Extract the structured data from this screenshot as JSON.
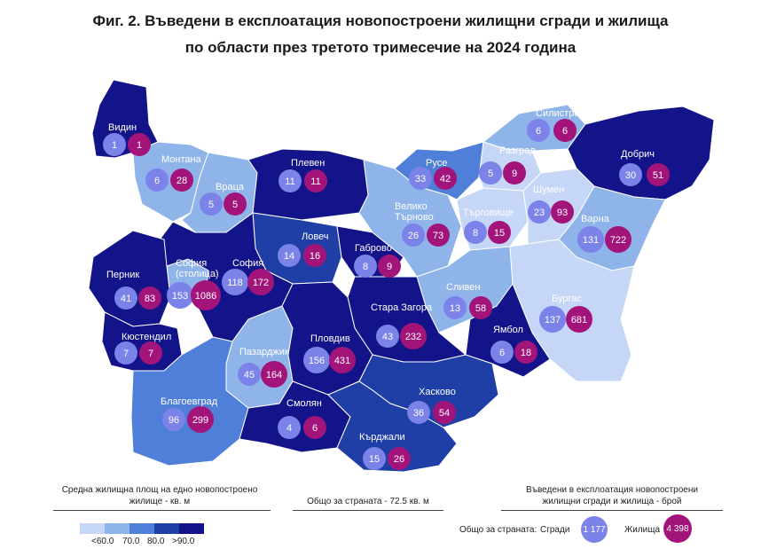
{
  "title_line1": "Фиг. 2. Въведени в експлоатация новопостроени жилищни сгради и жилища",
  "title_line2": "по области през третото тримесечие на 2024 година",
  "colors": {
    "lt60": "#c5d6f7",
    "c70": "#8fb4ea",
    "c80": "#4f7fd8",
    "c90": "#1f3fa6",
    "gt90": "#14148a",
    "buildings_circle": "#7b82e8",
    "dwellings_circle": "#a3147a"
  },
  "regions": [
    {
      "name": "Видин",
      "buildings": "1",
      "dwellings": "1"
    },
    {
      "name": "Монтана",
      "buildings": "6",
      "dwellings": "28"
    },
    {
      "name": "Враца",
      "buildings": "5",
      "dwellings": "5"
    },
    {
      "name": "Плевен",
      "buildings": "11",
      "dwellings": "11"
    },
    {
      "name": "Русе",
      "buildings": "33",
      "dwellings": "42"
    },
    {
      "name": "Силистра",
      "buildings": "6",
      "dwellings": "6"
    },
    {
      "name": "Разград",
      "buildings": "5",
      "dwellings": "9"
    },
    {
      "name": "Добрич",
      "buildings": "30",
      "dwellings": "51"
    },
    {
      "name": "Шумен",
      "buildings": "23",
      "dwellings": "93"
    },
    {
      "name": "Търговище",
      "buildings": "8",
      "dwellings": "15"
    },
    {
      "name": "Велико Търново",
      "buildings": "26",
      "dwellings": "73"
    },
    {
      "name": "Варна",
      "buildings": "131",
      "dwellings": "722"
    },
    {
      "name": "Ловеч",
      "buildings": "14",
      "dwellings": "16"
    },
    {
      "name": "Габрово",
      "buildings": "8",
      "dwellings": "9"
    },
    {
      "name": "София (столица)",
      "buildings": "153",
      "dwellings": "1086"
    },
    {
      "name": "София",
      "buildings": "118",
      "dwellings": "172"
    },
    {
      "name": "Перник",
      "buildings": "41",
      "dwellings": "83"
    },
    {
      "name": "Сливен",
      "buildings": "13",
      "dwellings": "58"
    },
    {
      "name": "Бургас",
      "buildings": "137",
      "dwellings": "681"
    },
    {
      "name": "Стара Загора",
      "buildings": "43",
      "dwellings": "232"
    },
    {
      "name": "Кюстендил",
      "buildings": "7",
      "dwellings": "7"
    },
    {
      "name": "Ямбол",
      "buildings": "6",
      "dwellings": "18"
    },
    {
      "name": "Пазарджик",
      "buildings": "45",
      "dwellings": "164"
    },
    {
      "name": "Пловдив",
      "buildings": "156",
      "dwellings": "431"
    },
    {
      "name": "Благоевград",
      "buildings": "96",
      "dwellings": "299"
    },
    {
      "name": "Хасково",
      "buildings": "36",
      "dwellings": "54"
    },
    {
      "name": "Смолян",
      "buildings": "4",
      "dwellings": "6"
    },
    {
      "name": "Кърджали",
      "buildings": "15",
      "dwellings": "26"
    }
  ],
  "legend_left_title": "Средна жилищна площ на едно новопостроено жилище - кв. м",
  "total_area": "Общо за страната - 72.5 кв. м",
  "legend_right_title": "Въведени в експлоатация новопостроени жилищни сгради и жилища - брой",
  "legend_classes": [
    "<60.0",
    "70.0",
    "80.0",
    ">90.0"
  ],
  "national_label": "Общо за страната:",
  "buildings_label": "Сгради",
  "buildings_total": "1 177",
  "dwellings_label": "Жилища",
  "dwellings_total": "4 398"
}
